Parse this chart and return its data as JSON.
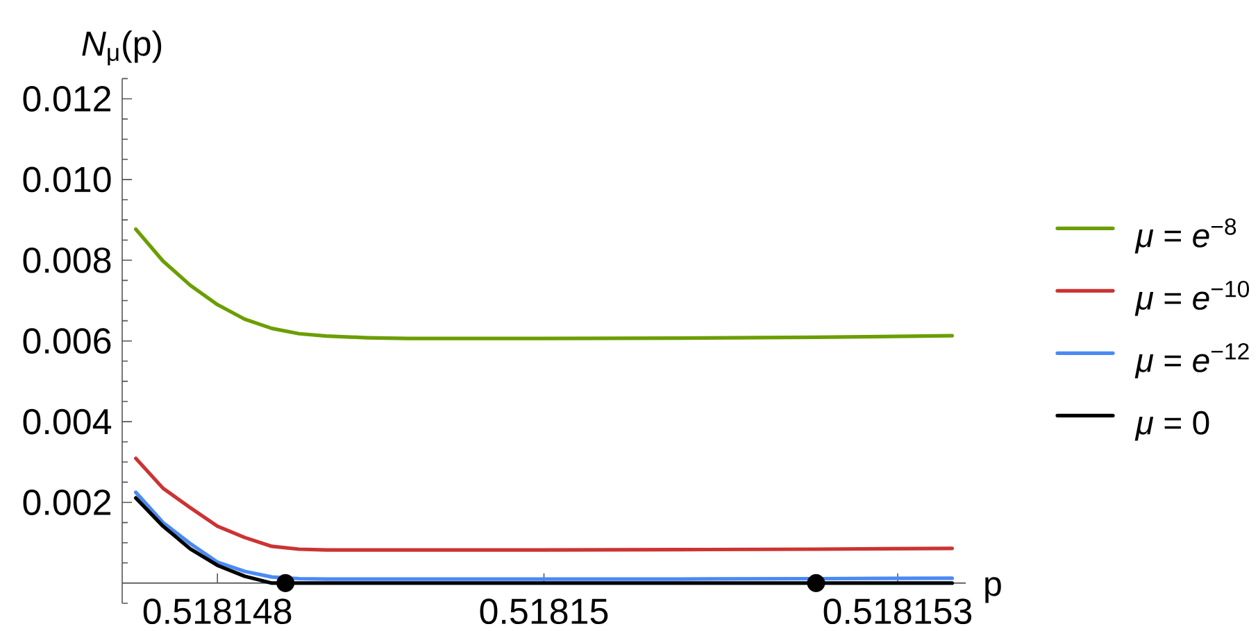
{
  "chart_data": {
    "type": "line",
    "ylabel": "*N*$_{μ}$(p)",
    "xlabel": "p",
    "x": [
      0.518147,
      0.5181472,
      0.5181474,
      0.5181476,
      0.5181478,
      0.518148,
      0.5181482,
      0.5181484,
      0.5181487,
      0.518149,
      0.51815,
      0.518151,
      0.518152,
      0.518153
    ],
    "series": [
      {
        "name": "*μ* = *e*$^{−8}$",
        "color": "#6b9e00",
        "values": [
          0.00877,
          0.00798,
          0.00738,
          0.0069,
          0.00654,
          0.00631,
          0.00618,
          0.00612,
          0.00608,
          0.00606,
          0.00606,
          0.00607,
          0.00609,
          0.00613
        ]
      },
      {
        "name": "*μ* = *e*$^{−10}$",
        "color": "#cc3333",
        "values": [
          0.00309,
          0.00235,
          0.00187,
          0.00141,
          0.00113,
          0.00091,
          0.00084,
          0.00082,
          0.00082,
          0.00082,
          0.00082,
          0.00083,
          0.00084,
          0.00086
        ]
      },
      {
        "name": "*μ* = *e*$^{−12}$",
        "color": "#4a8af4",
        "values": [
          0.00225,
          0.0015,
          0.00098,
          0.00052,
          0.00029,
          0.00015,
          0.00011,
          0.0001,
          0.0001,
          0.0001,
          0.0001,
          0.0001,
          0.00011,
          0.00012
        ]
      },
      {
        "name": "*μ* = 0",
        "color": "#000000",
        "values": [
          0.00211,
          0.00141,
          0.00085,
          0.00044,
          0.00017,
          0,
          0,
          0,
          0,
          0,
          0,
          0,
          0,
          0
        ]
      },
      {
        "type": "scatter",
        "x": [
          0.5181481,
          0.518152
        ],
        "values": [
          0,
          0
        ],
        "color": "#000000",
        "marker": "circle"
      }
    ],
    "xlim": [
      0.5181469,
      0.5181531
    ],
    "ylim": [
      -0.0005,
      0.0125
    ],
    "xticks": [
      {
        "value": 0.5181476,
        "label": "0.518148"
      },
      0.51815,
      {
        "value": 0.5181526,
        "label": "0.518153"
      }
    ],
    "yticks": [
      {
        "value": -0.0005,
        "label": null
      },
      {
        "value": 0.0005,
        "label": null
      },
      {
        "value": 0.001,
        "label": null
      },
      {
        "value": 0.0015,
        "label": null
      },
      0.002,
      {
        "value": 0.0025,
        "label": null
      },
      {
        "value": 0.003,
        "label": null
      },
      {
        "value": 0.0035,
        "label": null
      },
      0.004,
      {
        "value": 0.0045,
        "label": null
      },
      {
        "value": 0.005,
        "label": null
      },
      {
        "value": 0.0055,
        "label": null
      },
      0.006,
      {
        "value": 0.0065,
        "label": null
      },
      {
        "value": 0.007,
        "label": null
      },
      {
        "value": 0.0075,
        "label": null
      },
      0.008,
      {
        "value": 0.0085,
        "label": null
      },
      {
        "value": 0.009,
        "label": null
      },
      {
        "value": 0.0095,
        "label": null
      },
      {
        "value": 0.01,
        "label": "0.010"
      },
      {
        "value": 0.0105,
        "label": null
      },
      {
        "value": 0.011,
        "label": null
      },
      {
        "value": 0.0115,
        "label": null
      },
      0.012,
      {
        "value": 0.0125,
        "label": null
      }
    ],
    "legend": "right"
  }
}
